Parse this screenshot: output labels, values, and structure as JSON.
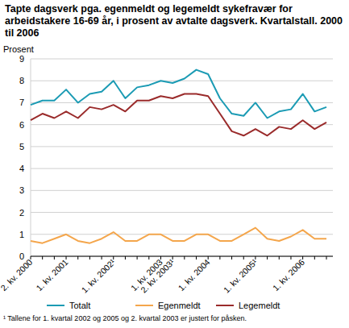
{
  "chart_data": {
    "type": "line",
    "title": "Tapte dagsverk pga. egenmeldt og legemeldt sykefravær for arbeidstakere 16-69 år, i prosent av avtalte dagsverk. Kvartalstall. 2000 til 2006",
    "y_label": "Prosent",
    "annotation": "¹ Tallene for 1. kvartal 2002 og 2005 og 2. kvartal 2003 er justert for påsken.",
    "categories": [
      "2. kv. 2000",
      null,
      null,
      "1. kv. 2001",
      null,
      null,
      null,
      "1. kv. 2002¹",
      null,
      null,
      null,
      "1. kv. 2003",
      "2. kv. 2003¹",
      null,
      null,
      "1. kv. 2004",
      null,
      null,
      null,
      "1. kv. 2005¹",
      null,
      null,
      null,
      "1. kv. 2006",
      null,
      null
    ],
    "series": [
      {
        "name": "Totalt",
        "color": "#1b9bb4",
        "values": [
          6.9,
          7.1,
          7.1,
          7.6,
          7.0,
          7.4,
          7.5,
          8.0,
          7.2,
          7.7,
          7.8,
          8.0,
          7.9,
          8.1,
          8.5,
          8.3,
          7.2,
          6.5,
          6.4,
          7.0,
          6.3,
          6.6,
          6.7,
          7.4,
          6.6,
          6.8
        ]
      },
      {
        "name": "Egenmeldt",
        "color": "#f4a64c",
        "values": [
          0.7,
          0.6,
          0.8,
          1.0,
          0.7,
          0.6,
          0.8,
          1.1,
          0.7,
          0.7,
          1.0,
          1.0,
          0.7,
          0.7,
          1.0,
          1.0,
          0.7,
          0.7,
          1.0,
          1.3,
          0.8,
          0.7,
          0.9,
          1.2,
          0.8,
          0.8
        ]
      },
      {
        "name": "Legemeldt",
        "color": "#9a2b2b",
        "values": [
          6.2,
          6.5,
          6.3,
          6.6,
          6.3,
          6.8,
          6.7,
          6.9,
          6.6,
          7.1,
          7.1,
          7.3,
          7.2,
          7.4,
          7.4,
          7.3,
          6.5,
          5.7,
          5.5,
          5.8,
          5.5,
          5.9,
          5.8,
          6.2,
          5.8,
          6.1
        ]
      }
    ],
    "ylim": [
      0,
      9
    ],
    "yticks": [
      0,
      1,
      2,
      3,
      4,
      5,
      6,
      7,
      8,
      9
    ],
    "grid": true,
    "legend": "bottom"
  }
}
